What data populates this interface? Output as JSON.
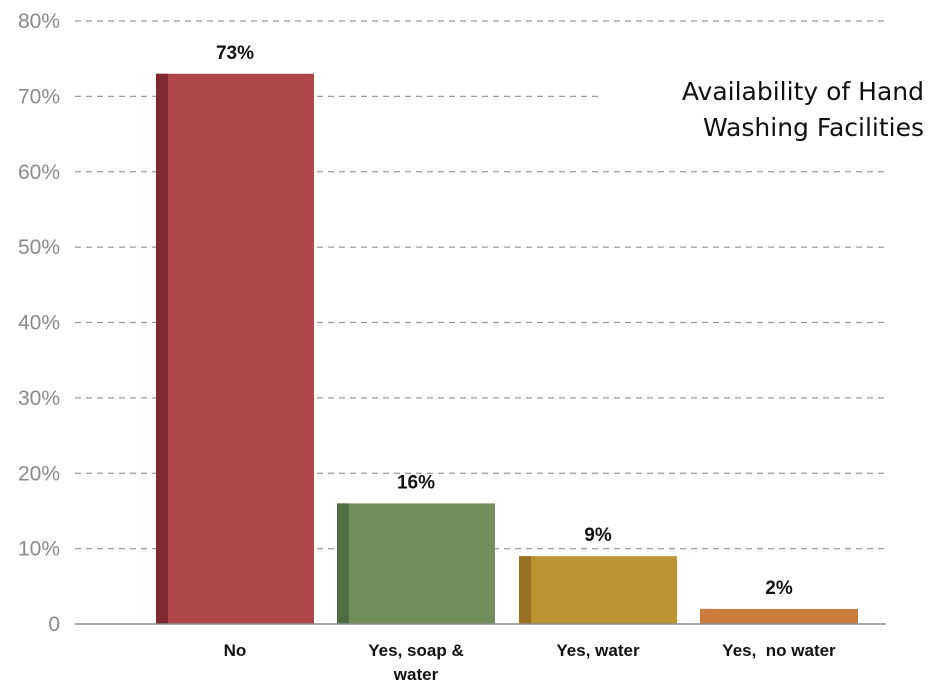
{
  "chart_data": {
    "type": "bar",
    "title": "Availability of Hand Washing Facilities",
    "categories": [
      "No",
      "Yes, soap & water",
      "Yes, water",
      "Yes,  no water"
    ],
    "category_lines": [
      [
        "No"
      ],
      [
        "Yes, soap &",
        "water"
      ],
      [
        "Yes, water"
      ],
      [
        "Yes,  no water"
      ]
    ],
    "values": [
      73,
      16,
      9,
      2
    ],
    "value_labels": [
      "73%",
      "16%",
      "9%",
      "2%"
    ],
    "ylim": [
      0,
      80
    ],
    "yticks": [
      0,
      10,
      20,
      30,
      40,
      50,
      60,
      70,
      80
    ],
    "ytick_labels": [
      "0",
      "10%",
      "20%",
      "30%",
      "40%",
      "50%",
      "60%",
      "70%",
      "80%"
    ],
    "xlabel": "",
    "ylabel": "",
    "grid": true,
    "colors": [
      "#b0474b",
      "#718f5d",
      "#bc9532",
      "#c97c3d"
    ],
    "shadow_colors": [
      "#7e2a30",
      "#4d6f43",
      "#9a7122",
      "#c97c3d"
    ],
    "grid_color": "#9a9a9a"
  }
}
